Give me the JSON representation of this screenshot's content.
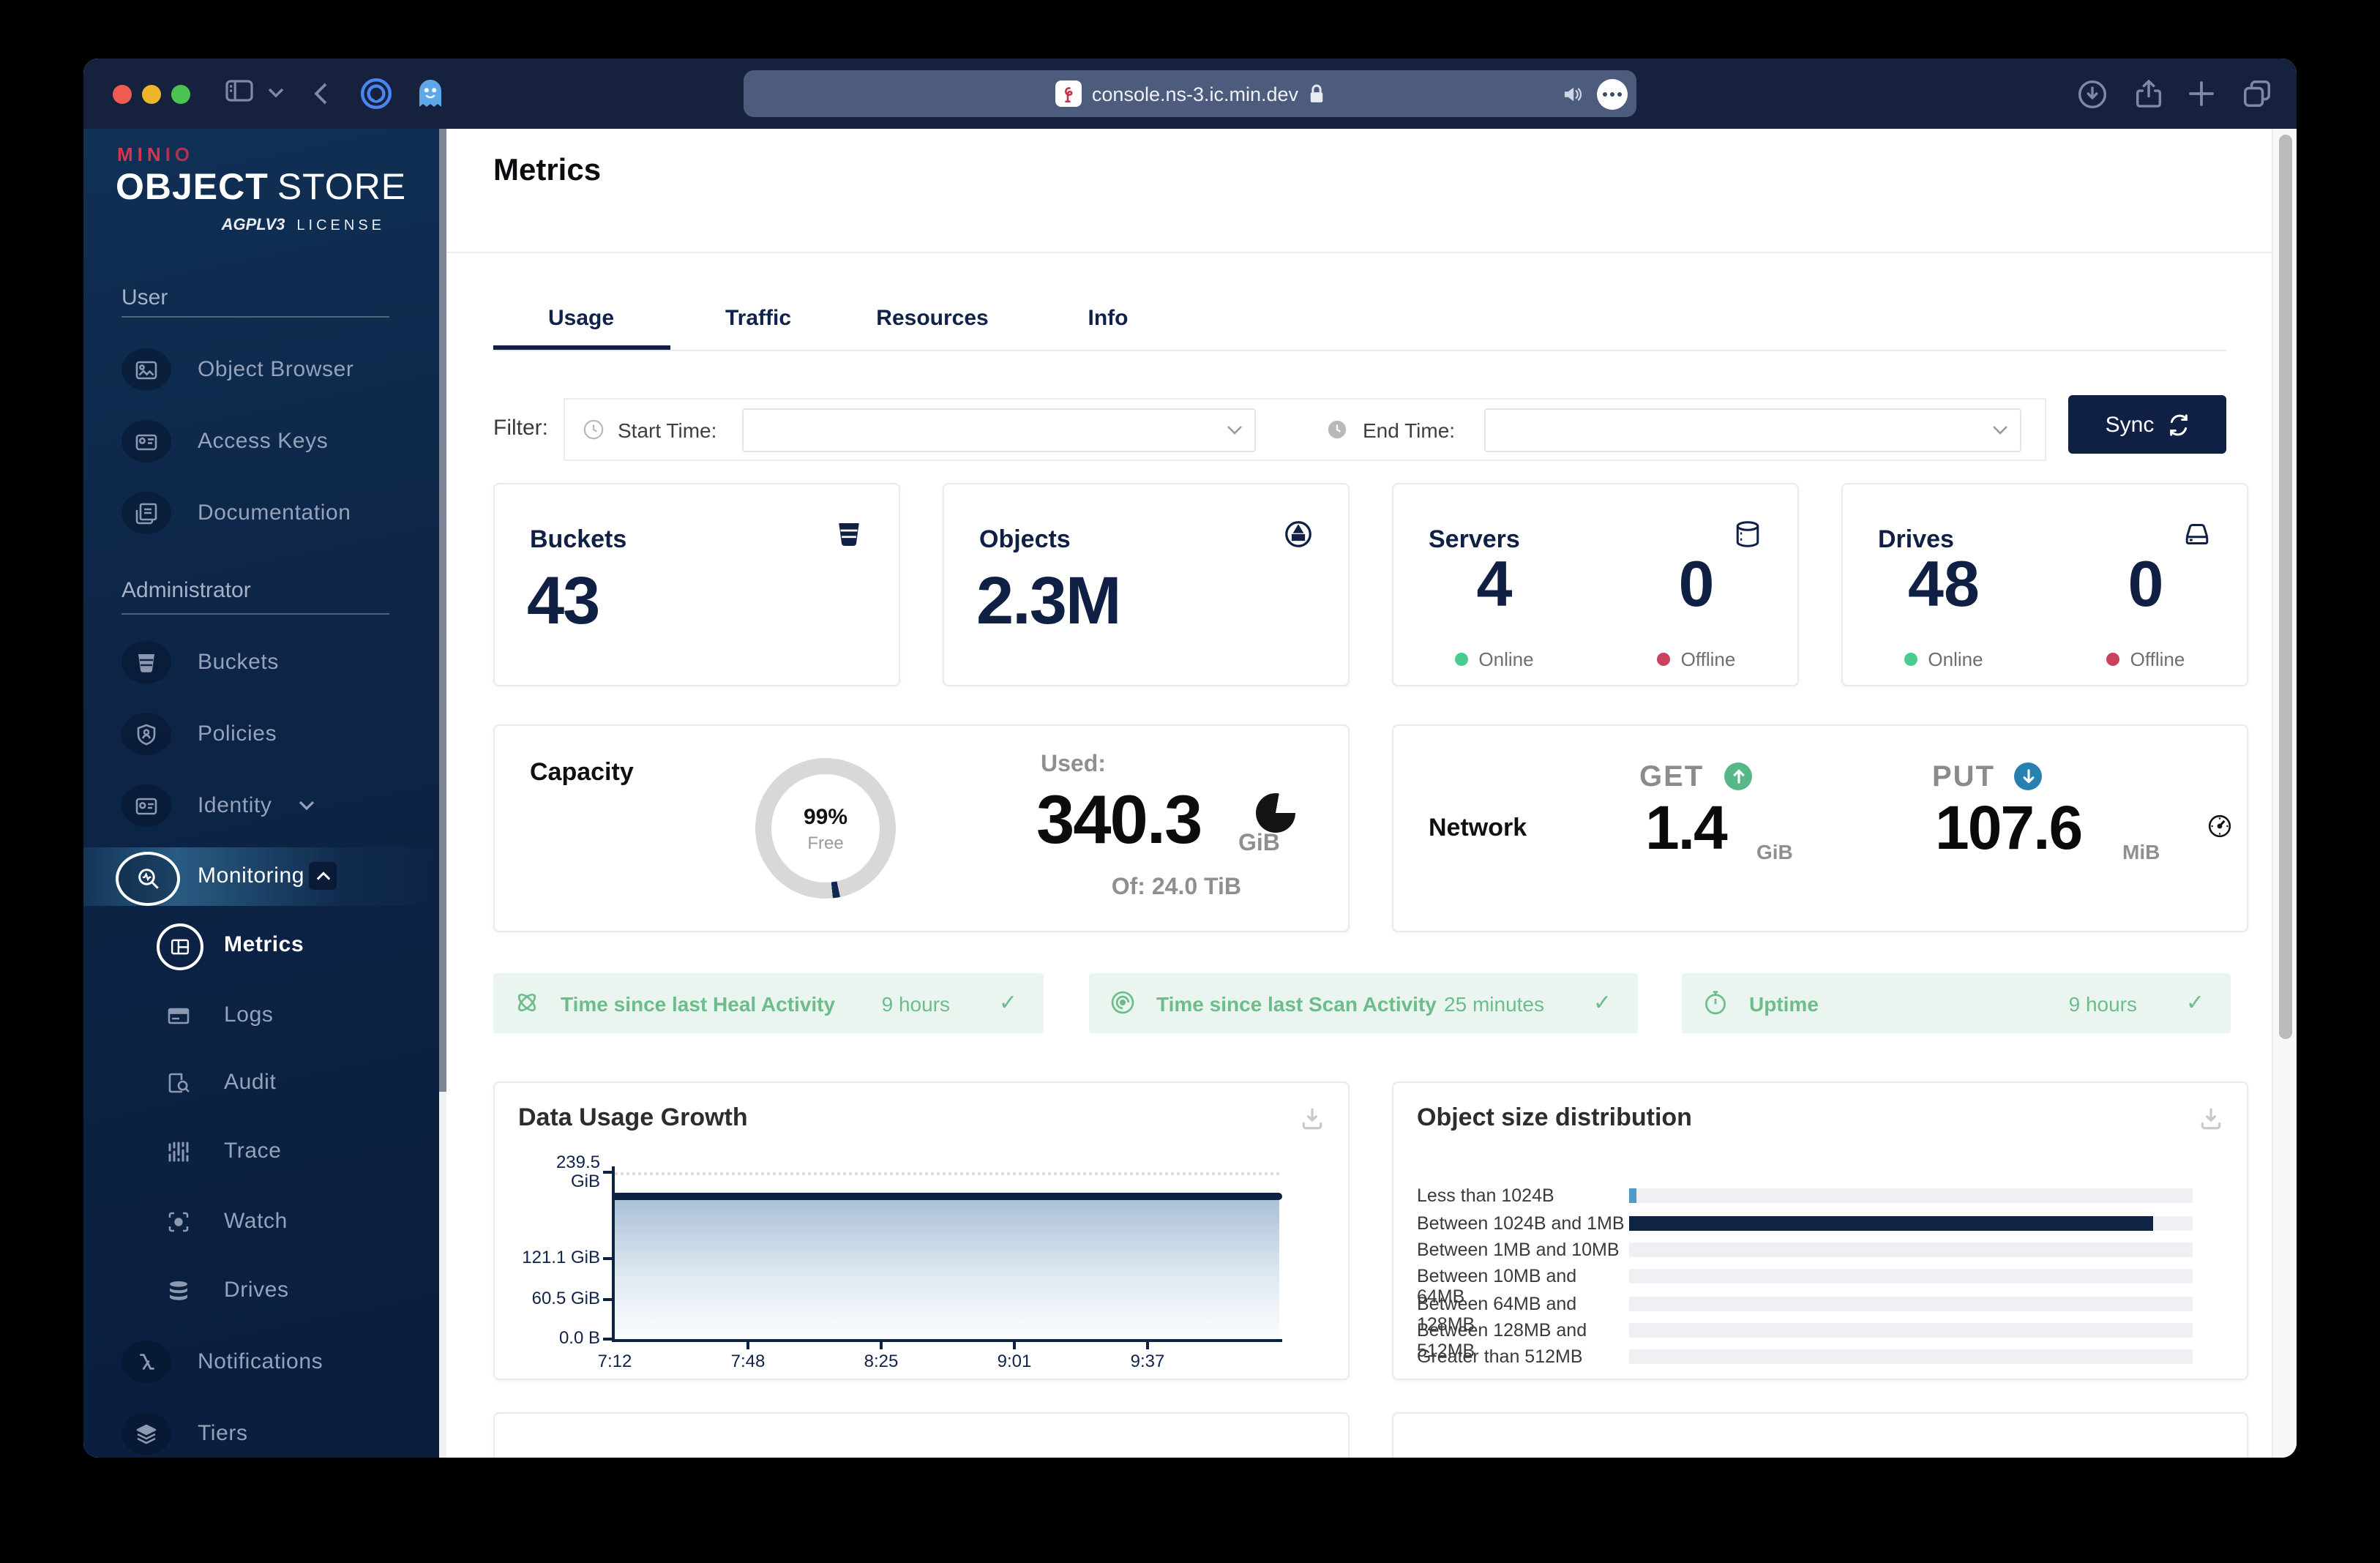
{
  "colors": {
    "navy": "#0F2044",
    "minio_red": "#D0364F",
    "green": "#6DBD8C",
    "green_dot": "#4BCB8E",
    "red_dot": "#C9415A",
    "get_green": "#57B787",
    "put_blue": "#2781B0",
    "bar_blue": "#4F9CCB",
    "bar_navy": "#0F2444"
  },
  "browser": {
    "url": "console.ns-3.ic.min.dev"
  },
  "brand": {
    "name_solid": "MIN",
    "name_outline": "IO",
    "product_bold": "OBJECT",
    "product_light": "STORE",
    "license_badge": "AGPLV3",
    "license_label": "LICENSE"
  },
  "sidebar": {
    "sections": [
      {
        "label": "User",
        "items": [
          {
            "label": "Object Browser"
          },
          {
            "label": "Access Keys"
          },
          {
            "label": "Documentation"
          }
        ]
      },
      {
        "label": "Administrator",
        "items": [
          {
            "label": "Buckets"
          },
          {
            "label": "Policies"
          },
          {
            "label": "Identity"
          },
          {
            "label": "Monitoring"
          },
          {
            "label": "Metrics"
          },
          {
            "label": "Logs"
          },
          {
            "label": "Audit"
          },
          {
            "label": "Trace"
          },
          {
            "label": "Watch"
          },
          {
            "label": "Drives"
          },
          {
            "label": "Notifications"
          },
          {
            "label": "Tiers"
          }
        ]
      }
    ]
  },
  "page": {
    "title": "Metrics",
    "tabs": [
      "Usage",
      "Traffic",
      "Resources",
      "Info"
    ]
  },
  "filter": {
    "label": "Filter:",
    "start_label": "Start Time:",
    "end_label": "End Time:",
    "sync_label": "Sync",
    "start_value": "",
    "end_value": ""
  },
  "stats": {
    "buckets": {
      "title": "Buckets",
      "value": "43"
    },
    "objects": {
      "title": "Objects",
      "value": "2.3M"
    },
    "servers": {
      "title": "Servers",
      "online": "4",
      "offline": "0",
      "online_label": "Online",
      "offline_label": "Offline"
    },
    "drives": {
      "title": "Drives",
      "online": "48",
      "offline": "0",
      "online_label": "Online",
      "offline_label": "Offline"
    }
  },
  "capacity": {
    "title": "Capacity",
    "free_pct": "99%",
    "free_label": "Free",
    "used_label": "Used:",
    "used_value": "340.3",
    "used_unit": "GiB",
    "of_label": "Of: 24.0 TiB",
    "used_degrees": 6
  },
  "network": {
    "title": "Network",
    "get_label": "GET",
    "get_value": "1.4",
    "get_unit": "GiB",
    "put_label": "PUT",
    "put_value": "107.6",
    "put_unit": "MiB"
  },
  "status_bars": [
    {
      "label": "Time since last Heal Activity",
      "value": "9 hours"
    },
    {
      "label": "Time since last Scan Activity",
      "value": "25 minutes"
    },
    {
      "label": "Uptime",
      "value": "9 hours"
    }
  ],
  "chart_data": [
    {
      "type": "area",
      "title": "Data Usage Growth",
      "x": [
        "7:12",
        "7:48",
        "8:25",
        "9:01",
        "9:37"
      ],
      "series": [
        {
          "name": "Data Usage",
          "values": [
            206,
            206,
            206,
            206,
            206
          ]
        }
      ],
      "ylim": [
        0,
        239.5
      ],
      "unit": "GiB",
      "yticks": [
        "239.5",
        "121.1 GiB",
        "60.5 GiB",
        "0.0 B"
      ],
      "ytick_top_unit": "GiB",
      "grid": "dotted-horizontal",
      "legend": "none"
    },
    {
      "type": "bar",
      "orientation": "horizontal",
      "title": "Object size distribution",
      "categories": [
        "Less than 1024B",
        "Between 1024B and 1MB",
        "Between 1MB and 10MB",
        "Between 10MB and 64MB",
        "Between 64MB and 128MB",
        "Between 128MB and 512MB",
        "Greater than 512MB"
      ],
      "values_pct": [
        1.2,
        93,
        0,
        0,
        0,
        0,
        0
      ],
      "bar_colors": [
        "#4F9CCB",
        "#0F2444",
        "#eef0f3",
        "#eef0f3",
        "#eef0f3",
        "#eef0f3",
        "#eef0f3"
      ],
      "xlabel": "",
      "ylabel": "",
      "legend": "none"
    }
  ]
}
